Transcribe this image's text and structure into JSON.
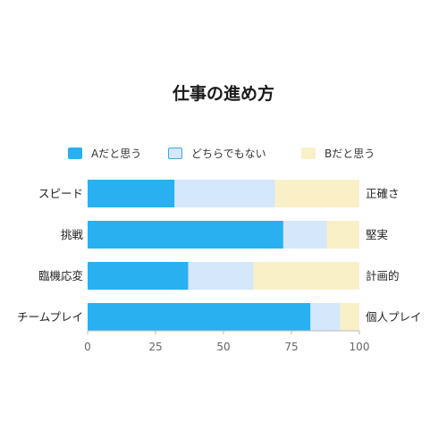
{
  "chart_data": {
    "type": "bar",
    "orientation": "horizontal",
    "stacked": true,
    "title": "仕事の進め方",
    "categories": [
      "スピード",
      "挑戦",
      "臨機応変",
      "チームプレイ"
    ],
    "right_labels": [
      "正確さ",
      "堅実",
      "計画的",
      "個人プレイ"
    ],
    "series": [
      {
        "name": "Aだと思う",
        "values": [
          32,
          72,
          37,
          82
        ],
        "color": "#29B0F0"
      },
      {
        "name": "どちらでもない",
        "values": [
          37,
          16,
          24,
          11
        ],
        "color": "#D4E7FB"
      },
      {
        "name": "Bだと思う",
        "values": [
          31,
          12,
          39,
          7
        ],
        "color": "#FAF0C8"
      }
    ],
    "xlim": [
      0,
      100
    ],
    "xticks": [
      0,
      25,
      50,
      75,
      100
    ],
    "grid": false,
    "legend_position": "top"
  }
}
